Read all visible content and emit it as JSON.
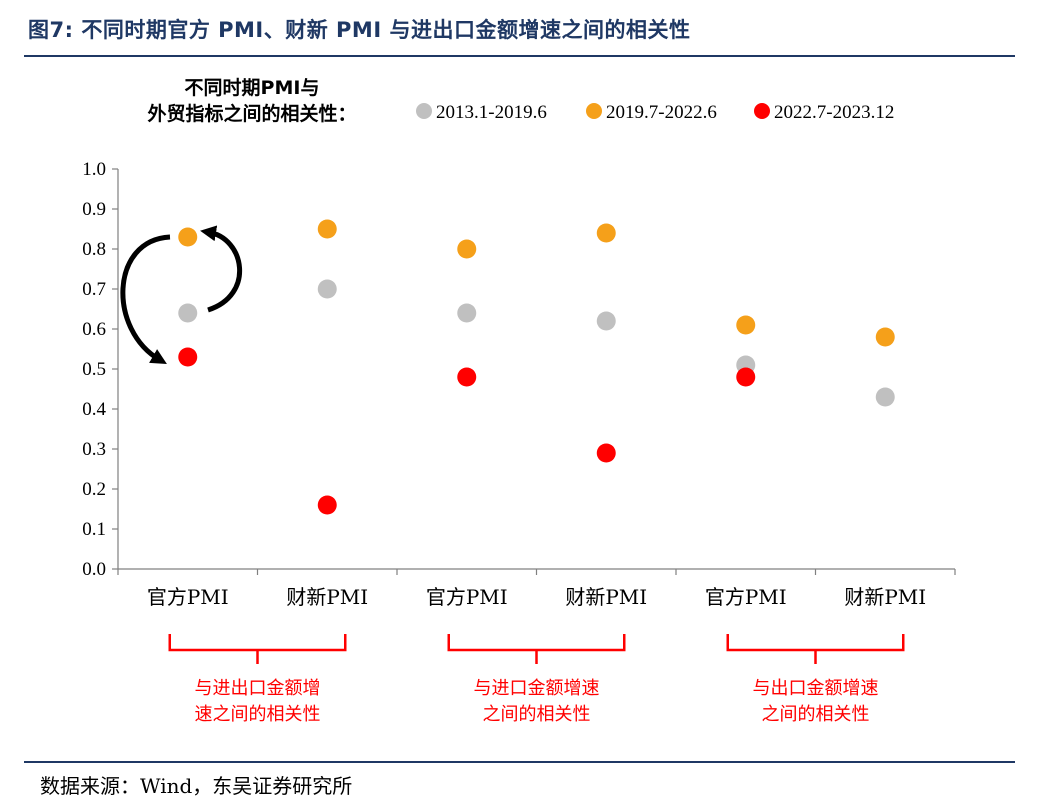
{
  "figure_title": "图7:  不同时期官方 PMI、财新 PMI 与进出口金额增速之间的相关性",
  "source": "数据来源：Wind，东吴证券研究所",
  "colors": {
    "title": "#1f3864",
    "accent_red": "#ff0000",
    "s1": "#c0c0c0",
    "s2": "#f5a01a",
    "s3": "#ff0000"
  },
  "chart_data": {
    "type": "scatter",
    "legend_title": [
      "不同时期PMI与",
      "外贸指标之间的相关性："
    ],
    "legend_position": "top",
    "categories": [
      "官方PMI",
      "财新PMI",
      "官方PMI",
      "财新PMI",
      "官方PMI",
      "财新PMI"
    ],
    "groups": [
      {
        "label": [
          "与进出口金额增",
          "速之间的相关性"
        ],
        "categories": [
          0,
          1
        ]
      },
      {
        "label": [
          "与进口金额增速",
          "之间的相关性"
        ],
        "categories": [
          2,
          3
        ]
      },
      {
        "label": [
          "与出口金额增速",
          "之间的相关性"
        ],
        "categories": [
          4,
          5
        ]
      }
    ],
    "series": [
      {
        "name": "2013.1-2019.6",
        "color": "#c0c0c0",
        "values": [
          0.64,
          0.7,
          0.64,
          0.62,
          0.51,
          0.43
        ]
      },
      {
        "name": "2019.7-2022.6",
        "color": "#f5a01a",
        "values": [
          0.83,
          0.85,
          0.8,
          0.84,
          0.61,
          0.58
        ]
      },
      {
        "name": "2022.7-2023.12",
        "color": "#ff0000",
        "values": [
          0.53,
          0.16,
          0.48,
          0.29,
          0.48,
          null
        ]
      }
    ],
    "ylim": [
      0,
      1.0
    ],
    "yticks": [
      "0.0",
      "0.1",
      "0.2",
      "0.3",
      "0.4",
      "0.5",
      "0.6",
      "0.7",
      "0.8",
      "0.9",
      "1.0"
    ],
    "grid": false,
    "annotation": "curved arrows on first category indicating shift between periods"
  }
}
